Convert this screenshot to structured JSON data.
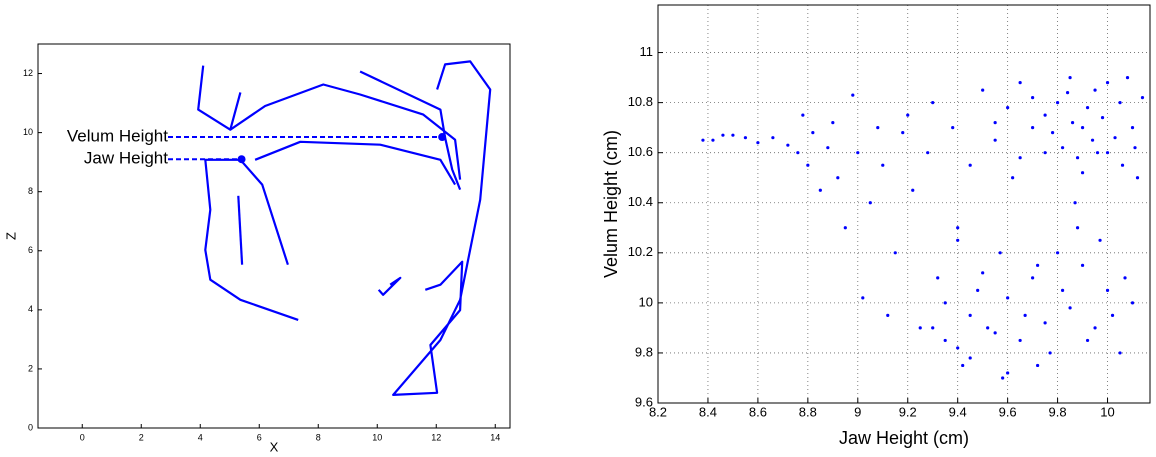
{
  "chart_data": [
    {
      "type": "line",
      "xlabel": "X",
      "ylabel": "Z",
      "xlim": [
        -1.5,
        14.5
      ],
      "ylim": [
        0,
        13
      ],
      "xticks": [
        0,
        2,
        4,
        6,
        8,
        10,
        12,
        14
      ],
      "yticks": [
        0,
        2,
        4,
        6,
        8,
        10,
        12
      ],
      "grid": false,
      "series": [
        {
          "color": "#0000ff",
          "x": [
            4.1,
            3.93,
            5.02,
            5.36
          ],
          "values": [
            12.27,
            10.78,
            10.1,
            11.36
          ]
        },
        {
          "color": "#0000ff",
          "x": [
            5.02,
            6.2,
            8.17,
            9.42,
            11.56,
            12.64,
            12.81
          ],
          "values": [
            10.1,
            10.9,
            11.63,
            11.29,
            10.61,
            9.76,
            8.41
          ]
        },
        {
          "color": "#0000ff",
          "x": [
            9.42,
            12.14,
            12.3,
            12.54,
            12.81
          ],
          "values": [
            12.07,
            10.78,
            9.83,
            8.75,
            8.07
          ]
        },
        {
          "color": "#0000ff",
          "x": [
            12.03,
            12.3,
            13.15,
            13.83,
            13.49,
            12.81,
            12.14,
            10.54,
            12.03,
            11.8,
            12.81,
            12.88,
            12.14,
            11.63
          ],
          "values": [
            11.46,
            12.31,
            12.41,
            11.46,
            7.73,
            4.34,
            2.98,
            1.12,
            1.19,
            2.81,
            3.99,
            5.63,
            4.85,
            4.68
          ]
        },
        {
          "color": "#0000ff",
          "x": [
            5.86,
            7.39,
            10.1,
            12.14,
            12.64
          ],
          "values": [
            9.08,
            9.69,
            9.59,
            9.08,
            8.24
          ]
        },
        {
          "color": "#0000ff",
          "x": [
            5.36,
            4.17,
            4.34,
            4.17,
            4.34,
            5.36,
            7.32
          ],
          "values": [
            9.08,
            9.08,
            7.39,
            6.03,
            5.02,
            4.34,
            3.66
          ]
        },
        {
          "color": "#0000ff",
          "x": [
            5.36,
            6.1,
            6.97
          ],
          "values": [
            9.08,
            8.24,
            5.53
          ]
        },
        {
          "color": "#0000ff",
          "x": [
            5.29,
            5.42
          ],
          "values": [
            7.86,
            5.53
          ]
        },
        {
          "color": "#0000ff",
          "x": [
            10.44,
            10.78,
            10.2,
            10.05
          ],
          "values": [
            4.85,
            5.08,
            4.51,
            4.68
          ]
        }
      ],
      "annotations": [
        {
          "text": "Velum Height",
          "x": 12.2,
          "y": 9.85
        },
        {
          "text": "Jaw Height",
          "x": 5.4,
          "y": 9.1
        }
      ]
    },
    {
      "type": "scatter",
      "xlabel": "Jaw Height (cm)",
      "ylabel": "Velum Height (cm)",
      "color": "#0000ff",
      "xlim": [
        8.2,
        10.17
      ],
      "ylim": [
        9.6,
        11.19
      ],
      "xticks": [
        8.2,
        8.4,
        8.6,
        8.8,
        9,
        9.2,
        9.4,
        9.6,
        9.8,
        10
      ],
      "yticks": [
        9.6,
        9.8,
        10,
        10.2,
        10.4,
        10.6,
        10.8,
        11
      ],
      "grid": true,
      "x": [
        8.38,
        8.42,
        8.46,
        8.5,
        8.55,
        8.6,
        8.66,
        8.72,
        8.76,
        8.78,
        8.8,
        8.82,
        8.85,
        8.88,
        8.9,
        8.92,
        8.95,
        8.98,
        9.0,
        9.02,
        9.05,
        9.08,
        9.1,
        9.12,
        9.15,
        9.18,
        9.2,
        9.22,
        9.25,
        9.28,
        9.3,
        9.32,
        9.35,
        9.38,
        9.4,
        9.42,
        9.45,
        9.48,
        9.5,
        9.52,
        9.55,
        9.57,
        9.6,
        9.62,
        9.65,
        9.67,
        9.7,
        9.72,
        9.75,
        9.77,
        9.8,
        9.82,
        9.85,
        9.87,
        9.9,
        9.92,
        9.95,
        9.97,
        10.0,
        10.02,
        10.05,
        10.07,
        10.1,
        10.12,
        10.14,
        9.75,
        9.78,
        9.82,
        9.86,
        9.88,
        9.92,
        9.94,
        9.98,
        10.0,
        10.03,
        10.06,
        9.84,
        9.7,
        9.6,
        9.55,
        9.65,
        9.9,
        10.08,
        9.96,
        10.11,
        9.3,
        9.35,
        9.4,
        9.45,
        9.5,
        9.55,
        9.6,
        9.65,
        9.7,
        9.75,
        9.8,
        9.85,
        9.9,
        9.95,
        10.0,
        10.05,
        10.1,
        9.45,
        9.58,
        9.72,
        9.88,
        9.4
      ],
      "values": [
        10.65,
        10.65,
        10.67,
        10.67,
        10.66,
        10.64,
        10.66,
        10.63,
        10.6,
        10.75,
        10.55,
        10.68,
        10.45,
        10.62,
        10.72,
        10.5,
        10.3,
        10.83,
        10.6,
        10.02,
        10.4,
        10.7,
        10.55,
        9.95,
        10.2,
        10.68,
        10.75,
        10.45,
        9.9,
        10.6,
        10.8,
        10.1,
        9.85,
        10.7,
        10.3,
        9.75,
        10.55,
        10.05,
        10.85,
        9.9,
        10.65,
        10.2,
        9.72,
        10.5,
        10.88,
        9.95,
        10.7,
        10.15,
        10.6,
        9.8,
        10.8,
        10.05,
        10.9,
        10.4,
        10.7,
        9.85,
        10.85,
        10.25,
        10.6,
        9.95,
        10.8,
        10.1,
        10.7,
        10.5,
        10.82,
        10.75,
        10.68,
        10.62,
        10.72,
        10.58,
        10.78,
        10.65,
        10.74,
        10.88,
        10.66,
        10.55,
        10.84,
        10.82,
        10.78,
        10.72,
        10.58,
        10.52,
        10.9,
        10.6,
        10.62,
        9.9,
        10.0,
        9.82,
        9.95,
        10.12,
        9.88,
        10.02,
        9.85,
        10.1,
        9.92,
        10.2,
        9.98,
        10.15,
        9.9,
        10.05,
        9.8,
        10.0,
        9.78,
        9.7,
        9.75,
        10.3,
        10.25
      ]
    }
  ]
}
